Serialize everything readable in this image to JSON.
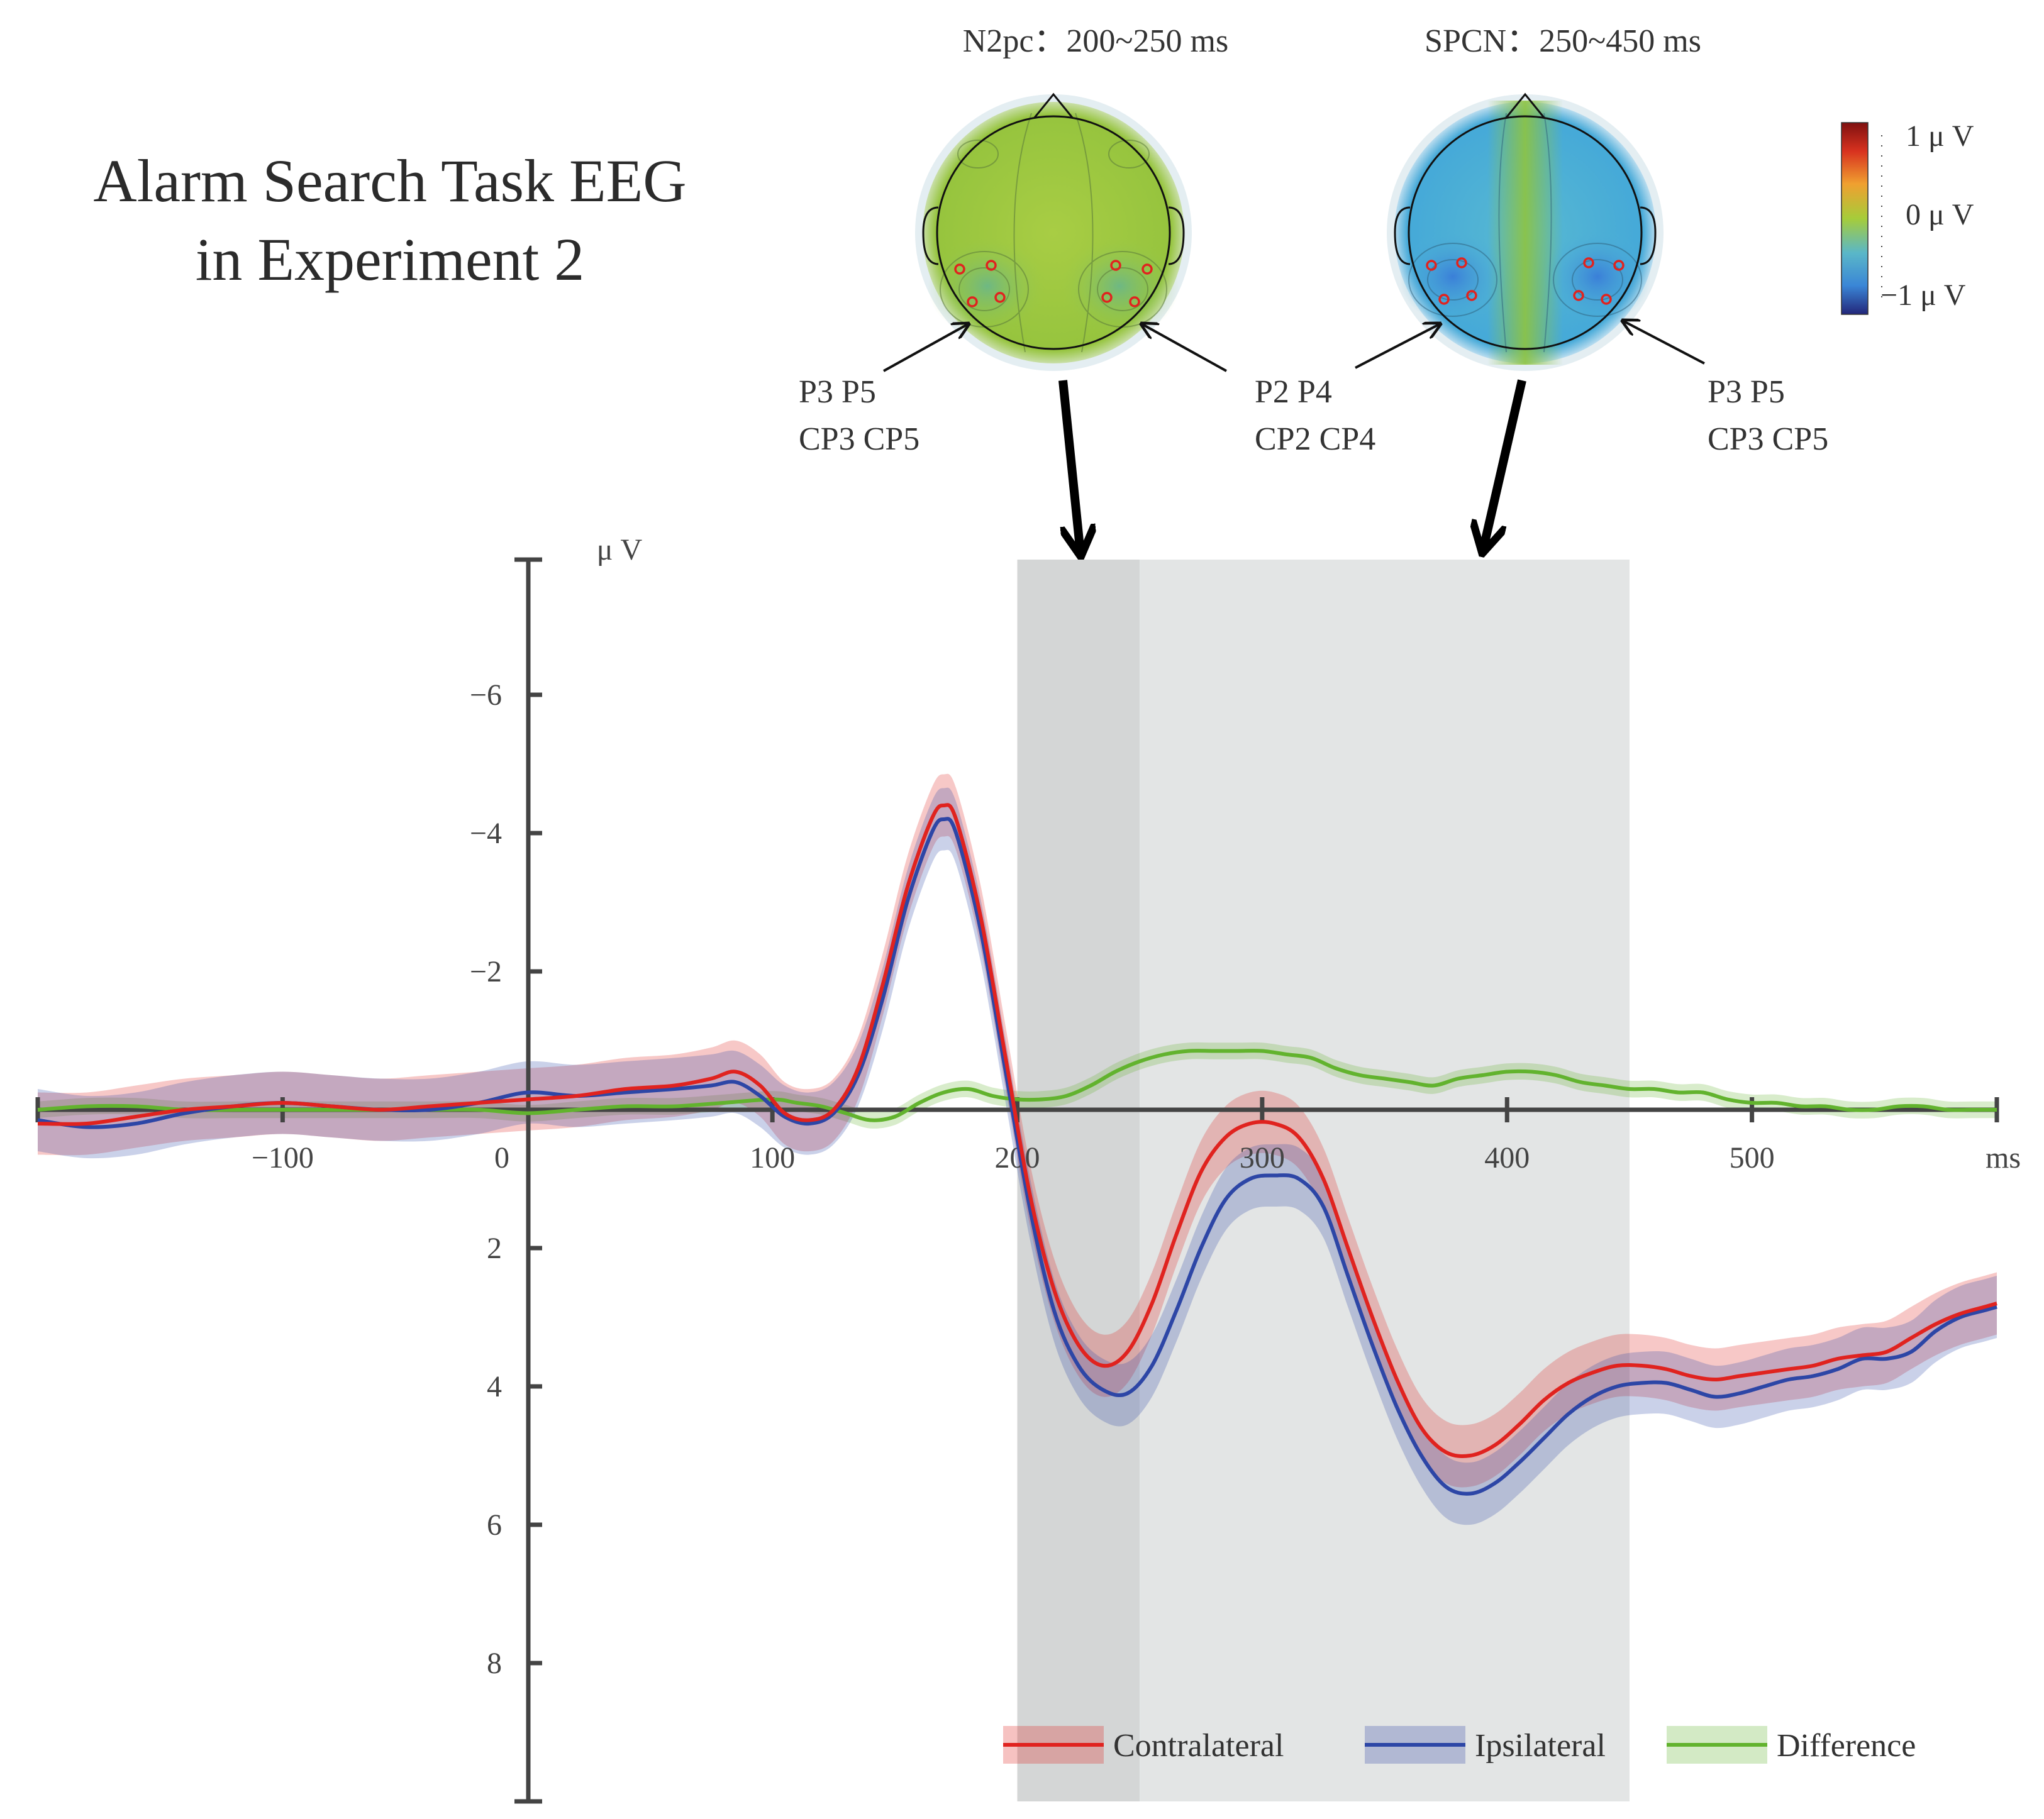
{
  "title_lines": [
    "Alarm Search Task EEG",
    "in Experiment 2"
  ],
  "topomaps": [
    {
      "title": "N2pc：200~250 ms",
      "left_label": [
        "P3 P5",
        "CP3 CP5"
      ],
      "right_label": [
        "P2 P4",
        "CP2 CP4"
      ]
    },
    {
      "title": "SPCN：250~450 ms",
      "right_label": [
        "P3 P5",
        "CP3 CP5"
      ]
    }
  ],
  "colorbar": {
    "labels": [
      "1 μ V",
      "0 μ V",
      "−1 μ V"
    ],
    "colors": [
      "#7f1010",
      "#d8321f",
      "#f0a030",
      "#a6cc3a",
      "#5ab7c8",
      "#3a86d6",
      "#23267a"
    ]
  },
  "colors": {
    "contralateral": "#e0231f",
    "ipsilateral": "#2d46a6",
    "difference": "#62b32e",
    "n2pc_window": "#d4d6d6",
    "spcn_window": "#e3e5e5",
    "topo_green": "#9cc942",
    "topo_blue": "#4fb3d6",
    "electrode": "#e0231f"
  },
  "chart_data": {
    "type": "line",
    "xlabel": "ms",
    "ylabel": "μ V",
    "y_inverted": true,
    "xlim": [
      -200,
      600
    ],
    "ylim": [
      -8,
      10
    ],
    "xticks": [
      -100,
      0,
      100,
      200,
      300,
      400,
      500
    ],
    "xtick_labels": [
      "−100",
      "0",
      "100",
      "200",
      "300",
      "400",
      "500"
    ],
    "yticks": [
      -6,
      -4,
      -2,
      2,
      4,
      6,
      8
    ],
    "ytick_labels": [
      "−6",
      "−4",
      "−2",
      "2",
      "4",
      "6",
      "8"
    ],
    "shaded_windows": [
      {
        "name": "N2pc",
        "x": [
          200,
          250
        ]
      },
      {
        "name": "SPCN",
        "x": [
          250,
          450
        ]
      }
    ],
    "series": [
      {
        "name": "Contralateral",
        "band_halfwidth": 0.45,
        "points": [
          [
            -200,
            0.2
          ],
          [
            -180,
            0.2
          ],
          [
            -160,
            0.1
          ],
          [
            -140,
            0.0
          ],
          [
            -120,
            -0.05
          ],
          [
            -100,
            -0.1
          ],
          [
            -80,
            -0.05
          ],
          [
            -60,
            0.0
          ],
          [
            -40,
            -0.05
          ],
          [
            -20,
            -0.1
          ],
          [
            0,
            -0.15
          ],
          [
            20,
            -0.2
          ],
          [
            40,
            -0.3
          ],
          [
            60,
            -0.35
          ],
          [
            75,
            -0.45
          ],
          [
            85,
            -0.55
          ],
          [
            95,
            -0.35
          ],
          [
            105,
            0.05
          ],
          [
            115,
            0.15
          ],
          [
            125,
            0.0
          ],
          [
            135,
            -0.6
          ],
          [
            145,
            -1.8
          ],
          [
            155,
            -3.2
          ],
          [
            165,
            -4.2
          ],
          [
            170,
            -4.4
          ],
          [
            175,
            -4.2
          ],
          [
            185,
            -2.8
          ],
          [
            195,
            -0.8
          ],
          [
            205,
            1.2
          ],
          [
            215,
            2.6
          ],
          [
            225,
            3.4
          ],
          [
            235,
            3.7
          ],
          [
            245,
            3.5
          ],
          [
            255,
            2.8
          ],
          [
            265,
            1.8
          ],
          [
            275,
            0.9
          ],
          [
            285,
            0.4
          ],
          [
            295,
            0.2
          ],
          [
            305,
            0.2
          ],
          [
            315,
            0.4
          ],
          [
            325,
            1.0
          ],
          [
            335,
            2.0
          ],
          [
            345,
            3.0
          ],
          [
            355,
            3.9
          ],
          [
            365,
            4.6
          ],
          [
            375,
            4.95
          ],
          [
            385,
            5.0
          ],
          [
            395,
            4.85
          ],
          [
            405,
            4.55
          ],
          [
            415,
            4.2
          ],
          [
            425,
            3.95
          ],
          [
            435,
            3.8
          ],
          [
            445,
            3.7
          ],
          [
            455,
            3.7
          ],
          [
            465,
            3.75
          ],
          [
            475,
            3.85
          ],
          [
            485,
            3.9
          ],
          [
            495,
            3.85
          ],
          [
            505,
            3.8
          ],
          [
            515,
            3.75
          ],
          [
            525,
            3.7
          ],
          [
            535,
            3.6
          ],
          [
            545,
            3.55
          ],
          [
            555,
            3.5
          ],
          [
            565,
            3.3
          ],
          [
            575,
            3.1
          ],
          [
            585,
            2.95
          ],
          [
            595,
            2.85
          ],
          [
            600,
            2.8
          ]
        ]
      },
      {
        "name": "Ipsilateral",
        "band_halfwidth": 0.45,
        "points": [
          [
            -200,
            0.15
          ],
          [
            -180,
            0.25
          ],
          [
            -160,
            0.2
          ],
          [
            -140,
            0.05
          ],
          [
            -120,
            -0.05
          ],
          [
            -100,
            -0.1
          ],
          [
            -80,
            -0.05
          ],
          [
            -60,
            0.0
          ],
          [
            -40,
            0.0
          ],
          [
            -20,
            -0.1
          ],
          [
            0,
            -0.25
          ],
          [
            20,
            -0.2
          ],
          [
            40,
            -0.25
          ],
          [
            60,
            -0.3
          ],
          [
            75,
            -0.35
          ],
          [
            85,
            -0.4
          ],
          [
            95,
            -0.2
          ],
          [
            105,
            0.1
          ],
          [
            115,
            0.2
          ],
          [
            125,
            0.05
          ],
          [
            135,
            -0.5
          ],
          [
            145,
            -1.6
          ],
          [
            155,
            -3.0
          ],
          [
            165,
            -4.0
          ],
          [
            170,
            -4.2
          ],
          [
            175,
            -4.0
          ],
          [
            185,
            -2.6
          ],
          [
            195,
            -0.6
          ],
          [
            205,
            1.4
          ],
          [
            215,
            2.9
          ],
          [
            225,
            3.7
          ],
          [
            235,
            4.05
          ],
          [
            245,
            4.1
          ],
          [
            255,
            3.7
          ],
          [
            265,
            2.9
          ],
          [
            275,
            2.0
          ],
          [
            285,
            1.3
          ],
          [
            295,
            1.0
          ],
          [
            305,
            0.95
          ],
          [
            315,
            1.0
          ],
          [
            325,
            1.4
          ],
          [
            335,
            2.4
          ],
          [
            345,
            3.4
          ],
          [
            355,
            4.3
          ],
          [
            365,
            5.0
          ],
          [
            375,
            5.45
          ],
          [
            385,
            5.55
          ],
          [
            395,
            5.4
          ],
          [
            405,
            5.1
          ],
          [
            415,
            4.75
          ],
          [
            425,
            4.4
          ],
          [
            435,
            4.15
          ],
          [
            445,
            4.0
          ],
          [
            455,
            3.95
          ],
          [
            465,
            3.95
          ],
          [
            475,
            4.05
          ],
          [
            485,
            4.15
          ],
          [
            495,
            4.1
          ],
          [
            505,
            4.0
          ],
          [
            515,
            3.9
          ],
          [
            525,
            3.85
          ],
          [
            535,
            3.75
          ],
          [
            545,
            3.6
          ],
          [
            555,
            3.6
          ],
          [
            565,
            3.5
          ],
          [
            575,
            3.2
          ],
          [
            585,
            3.0
          ],
          [
            595,
            2.9
          ],
          [
            600,
            2.85
          ]
        ]
      },
      {
        "name": "Difference",
        "band_halfwidth": 0.12,
        "points": [
          [
            -200,
            0.0
          ],
          [
            -180,
            -0.05
          ],
          [
            -160,
            -0.05
          ],
          [
            -140,
            0.0
          ],
          [
            -120,
            0.0
          ],
          [
            -100,
            0.0
          ],
          [
            -80,
            0.0
          ],
          [
            -60,
            0.0
          ],
          [
            -40,
            0.0
          ],
          [
            -20,
            0.0
          ],
          [
            0,
            0.05
          ],
          [
            20,
            0.0
          ],
          [
            40,
            -0.05
          ],
          [
            60,
            -0.05
          ],
          [
            80,
            -0.1
          ],
          [
            100,
            -0.15
          ],
          [
            110,
            -0.1
          ],
          [
            120,
            -0.05
          ],
          [
            130,
            0.05
          ],
          [
            140,
            0.15
          ],
          [
            150,
            0.1
          ],
          [
            160,
            -0.1
          ],
          [
            170,
            -0.25
          ],
          [
            180,
            -0.3
          ],
          [
            190,
            -0.2
          ],
          [
            200,
            -0.15
          ],
          [
            210,
            -0.15
          ],
          [
            220,
            -0.2
          ],
          [
            230,
            -0.35
          ],
          [
            240,
            -0.55
          ],
          [
            250,
            -0.7
          ],
          [
            260,
            -0.8
          ],
          [
            270,
            -0.85
          ],
          [
            280,
            -0.85
          ],
          [
            290,
            -0.85
          ],
          [
            300,
            -0.85
          ],
          [
            310,
            -0.8
          ],
          [
            320,
            -0.75
          ],
          [
            330,
            -0.6
          ],
          [
            340,
            -0.5
          ],
          [
            350,
            -0.45
          ],
          [
            360,
            -0.4
          ],
          [
            370,
            -0.35
          ],
          [
            380,
            -0.45
          ],
          [
            390,
            -0.5
          ],
          [
            400,
            -0.55
          ],
          [
            410,
            -0.55
          ],
          [
            420,
            -0.5
          ],
          [
            430,
            -0.4
          ],
          [
            440,
            -0.35
          ],
          [
            450,
            -0.3
          ],
          [
            460,
            -0.3
          ],
          [
            470,
            -0.25
          ],
          [
            480,
            -0.25
          ],
          [
            490,
            -0.15
          ],
          [
            500,
            -0.1
          ],
          [
            510,
            -0.1
          ],
          [
            520,
            -0.05
          ],
          [
            530,
            -0.05
          ],
          [
            540,
            0.0
          ],
          [
            550,
            0.0
          ],
          [
            560,
            -0.05
          ],
          [
            570,
            -0.05
          ],
          [
            580,
            0.0
          ],
          [
            590,
            0.0
          ],
          [
            600,
            0.0
          ]
        ]
      }
    ],
    "legend": {
      "placement": "bottom-right",
      "entries": [
        "Contralateral",
        "Ipsilateral",
        "Difference"
      ]
    }
  }
}
